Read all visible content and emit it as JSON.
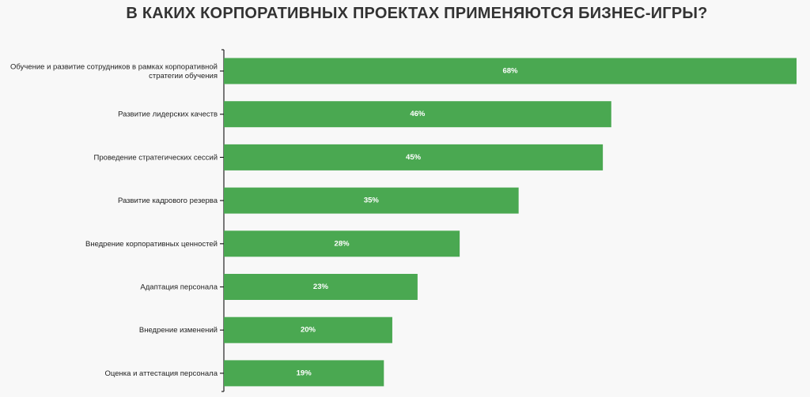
{
  "title": "В КАКИХ КОРПОРАТИВНЫХ ПРОЕКТАХ ПРИМЕНЯЮТСЯ БИЗНЕС-ИГРЫ?",
  "colors": {
    "bar": "#4aa851",
    "axis": "#222222",
    "background": "#f8f8f8"
  },
  "chart_data": {
    "type": "bar",
    "orientation": "horizontal",
    "title": "В КАКИХ КОРПОРАТИВНЫХ ПРОЕКТАХ ПРИМЕНЯЮТСЯ БИЗНЕС-ИГРЫ?",
    "categories": [
      [
        "Обучение и развитие сотрудников в рамках корпоративной",
        "стратегии обучения"
      ],
      [
        "Развитие лидерских качеств"
      ],
      [
        "Проведение стратегических сессий"
      ],
      [
        "Развитие кадрового резерва"
      ],
      [
        "Внедрение корпоративных ценностей"
      ],
      [
        "Адаптация персонала"
      ],
      [
        "Внедрение изменений"
      ],
      [
        "Оценка и аттестация персонала"
      ]
    ],
    "values": [
      68,
      46,
      45,
      35,
      28,
      23,
      20,
      19
    ],
    "value_labels": [
      "68%",
      "46%",
      "45%",
      "35%",
      "28%",
      "23%",
      "20%",
      "19%"
    ],
    "unit": "%",
    "xlim": [
      0,
      68
    ],
    "grid": false,
    "legend": "none"
  }
}
